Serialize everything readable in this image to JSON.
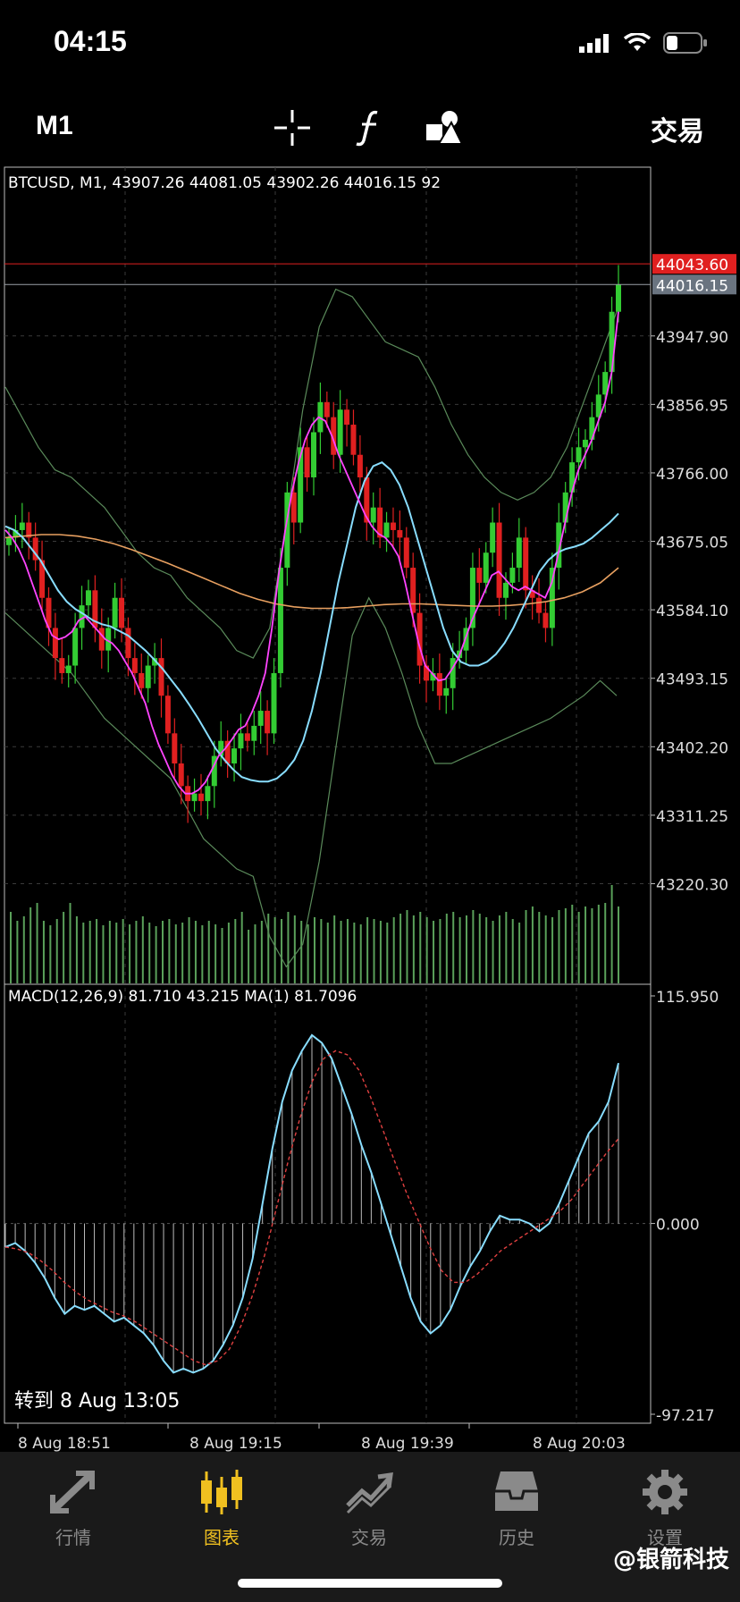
{
  "status_bar": {
    "time": "04:15"
  },
  "toolbar": {
    "timeframe": "M1",
    "trade_label": "交易"
  },
  "chart_data": {
    "type": "candlestick",
    "title": "BTCUSD, M1, 43907.26 44081.05 43902.26 44016.15 92",
    "price_axis_labels": [
      "43947.90",
      "43856.95",
      "43766.00",
      "43675.05",
      "43584.10",
      "43493.15",
      "43402.20",
      "43311.25",
      "43220.30"
    ],
    "price_axis_values": [
      43947.9,
      43856.95,
      43766.0,
      43675.05,
      43584.1,
      43493.15,
      43402.2,
      43311.25,
      43220.3
    ],
    "ylim": [
      43095,
      44140
    ],
    "ask_line": {
      "label": "44043.60",
      "value": 44043.6,
      "color": "#e02020"
    },
    "bid_line": {
      "label": "44016.15",
      "value": 44016.15,
      "color": "#9aa0a8"
    },
    "candle_closes": [
      43680,
      43690,
      43700,
      43680,
      43650,
      43600,
      43560,
      43520,
      43500,
      43510,
      43560,
      43590,
      43610,
      43560,
      43530,
      43560,
      43600,
      43560,
      43520,
      43500,
      43480,
      43510,
      43520,
      43470,
      43420,
      43380,
      43350,
      43330,
      43340,
      43330,
      43350,
      43390,
      43410,
      43380,
      43400,
      43420,
      43410,
      43430,
      43450,
      43420,
      43500,
      43640,
      43740,
      43700,
      43800,
      43760,
      43820,
      43860,
      43840,
      43790,
      43850,
      43830,
      43790,
      43760,
      43700,
      43720,
      43680,
      43700,
      43690,
      43680,
      43640,
      43580,
      43510,
      43490,
      43500,
      43470,
      43480,
      43520,
      43530,
      43560,
      43640,
      43620,
      43660,
      43700,
      43600,
      43620,
      43640,
      43680,
      43610,
      43600,
      43580,
      43560,
      43640,
      43700,
      43740,
      43780,
      43800,
      43810,
      43840,
      43870,
      43900,
      43980,
      44016.15
    ],
    "ma_fast": [
      43690,
      43680,
      43665,
      43645,
      43620,
      43595,
      43570,
      43550,
      43545,
      43548,
      43555,
      43570,
      43575,
      43565,
      43555,
      43545,
      43540,
      43530,
      43515,
      43500,
      43480,
      43460,
      43430,
      43405,
      43385,
      43365,
      43350,
      43340,
      43340,
      43345,
      43355,
      43372,
      43390,
      43400,
      43412,
      43425,
      43430,
      43448,
      43470,
      43500,
      43560,
      43630,
      43690,
      43740,
      43780,
      43810,
      43830,
      43840,
      43835,
      43815,
      43790,
      43770,
      43750,
      43730,
      43710,
      43695,
      43685,
      43680,
      43670,
      43655,
      43620,
      43580,
      43540,
      43510,
      43500,
      43490,
      43492,
      43505,
      43520,
      43545,
      43570,
      43590,
      43610,
      43630,
      43635,
      43625,
      43615,
      43610,
      43615,
      43610,
      43605,
      43600,
      43620,
      43660,
      43700,
      43740,
      43770,
      43790,
      43810,
      43835,
      43860,
      43900,
      43980
    ],
    "ma_mid": [
      43695,
      43690,
      43680,
      43665,
      43650,
      43630,
      43610,
      43595,
      43585,
      43578,
      43570,
      43565,
      43562,
      43556,
      43550,
      43540,
      43530,
      43518,
      43505,
      43490,
      43475,
      43458,
      43440,
      43420,
      43400,
      43385,
      43372,
      43362,
      43358,
      43356,
      43356,
      43360,
      43370,
      43385,
      43410,
      43450,
      43500,
      43560,
      43620,
      43670,
      43720,
      43755,
      43775,
      43780,
      43770,
      43750,
      43720,
      43680,
      43640,
      43600,
      43560,
      43530,
      43515,
      43510,
      43510,
      43515,
      43525,
      43540,
      43560,
      43585,
      43610,
      43635,
      43650,
      43660,
      43665,
      43668,
      43672,
      43680,
      43690,
      43700,
      43712
    ],
    "ma_slow": [
      43680,
      43682,
      43684,
      43684,
      43682,
      43678,
      43672,
      43664,
      43655,
      43646,
      43636,
      43626,
      43616,
      43606,
      43598,
      43592,
      43588,
      43586,
      43586,
      43587,
      43589,
      43591,
      43592,
      43592,
      43591,
      43590,
      43589,
      43589,
      43590,
      43592,
      43595,
      43600,
      43608,
      43620,
      43640
    ],
    "bb_upper": [
      43880,
      43840,
      43800,
      43770,
      43760,
      43740,
      43720,
      43690,
      43660,
      43640,
      43630,
      43600,
      43580,
      43560,
      43530,
      43520,
      43560,
      43700,
      43850,
      43960,
      44010,
      44000,
      43970,
      43940,
      43930,
      43920,
      43880,
      43830,
      43790,
      43760,
      43740,
      43730,
      43740,
      43760,
      43800,
      43860,
      43920,
      43980
    ],
    "bb_lower": [
      43580,
      43560,
      43540,
      43520,
      43500,
      43470,
      43440,
      43420,
      43400,
      43380,
      43360,
      43320,
      43280,
      43260,
      43240,
      43230,
      43150,
      43110,
      43140,
      43250,
      43400,
      43550,
      43600,
      43560,
      43500,
      43430,
      43380,
      43380,
      43390,
      43400,
      43410,
      43420,
      43430,
      43440,
      43455,
      43470,
      43490,
      43470
    ],
    "volumes": [
      80,
      70,
      75,
      85,
      90,
      70,
      65,
      72,
      80,
      90,
      75,
      68,
      70,
      72,
      65,
      70,
      68,
      72,
      66,
      70,
      75,
      68,
      64,
      70,
      72,
      66,
      68,
      74,
      70,
      65,
      70,
      66,
      62,
      68,
      72,
      80,
      60,
      66,
      70,
      78,
      74,
      72,
      80,
      76,
      70,
      66,
      74,
      72,
      68,
      76,
      70,
      72,
      68,
      66,
      74,
      72,
      70,
      68,
      74,
      78,
      82,
      76,
      80,
      74,
      70,
      72,
      78,
      80,
      74,
      76,
      82,
      78,
      74,
      70,
      76,
      80,
      72,
      68,
      82,
      86,
      80,
      76,
      74,
      82,
      84,
      88,
      80,
      86,
      84,
      88,
      90,
      110,
      86
    ],
    "macd_header": "MACD(12,26,9) 81.710 43.215 MA(1) 81.7096",
    "macd_axis_labels": [
      "115.950",
      "0.000",
      "-97.217"
    ],
    "macd_ylim": [
      -97.217,
      115.95
    ],
    "macd_main": [
      -12,
      -10,
      -14,
      -20,
      -28,
      -38,
      -46,
      -42,
      -44,
      -42,
      -46,
      -50,
      -48,
      -52,
      -56,
      -62,
      -70,
      -76,
      -74,
      -76,
      -74,
      -70,
      -62,
      -52,
      -38,
      -18,
      10,
      38,
      62,
      78,
      88,
      96,
      92,
      84,
      70,
      56,
      40,
      26,
      10,
      -6,
      -22,
      -38,
      -50,
      -56,
      -52,
      -44,
      -32,
      -22,
      -14,
      -4,
      4,
      2,
      2,
      0,
      -4,
      0,
      10,
      22,
      34,
      46,
      52,
      62,
      81.71
    ],
    "macd_signal": [
      -12,
      -13,
      -15,
      -19,
      -24,
      -30,
      -35,
      -39,
      -42,
      -45,
      -47,
      -50,
      -54,
      -58,
      -62,
      -66,
      -70,
      -72,
      -70,
      -64,
      -52,
      -36,
      -16,
      8,
      32,
      54,
      72,
      84,
      88,
      86,
      78,
      64,
      48,
      32,
      16,
      2,
      -12,
      -24,
      -30,
      -30,
      -26,
      -20,
      -14,
      -10,
      -6,
      -2,
      2,
      6,
      12,
      20,
      28,
      36,
      43.215
    ],
    "x_labels": [
      "8 Aug 18:51",
      "8 Aug 19:15",
      "8 Aug 19:39",
      "8 Aug 20:03"
    ],
    "goto_label": "转到 8 Aug 13:05",
    "colors": {
      "bull": "#33cc33",
      "bear": "#e02020",
      "ma_fast": "#ff44ff",
      "ma_mid": "#88ddff",
      "ma_slow": "#e8a060",
      "bands": "#5a8a5a",
      "macd": "#88ddff",
      "signal": "#e04040",
      "volume": "#5aa05a"
    }
  },
  "tabs": [
    {
      "label": "行情",
      "icon": "quotes-icon",
      "active": false
    },
    {
      "label": "图表",
      "icon": "chart-icon",
      "active": true
    },
    {
      "label": "交易",
      "icon": "trade-icon",
      "active": false
    },
    {
      "label": "历史",
      "icon": "history-icon",
      "active": false
    },
    {
      "label": "设置",
      "icon": "settings-icon",
      "active": false
    }
  ],
  "watermark": "@银箭科技"
}
